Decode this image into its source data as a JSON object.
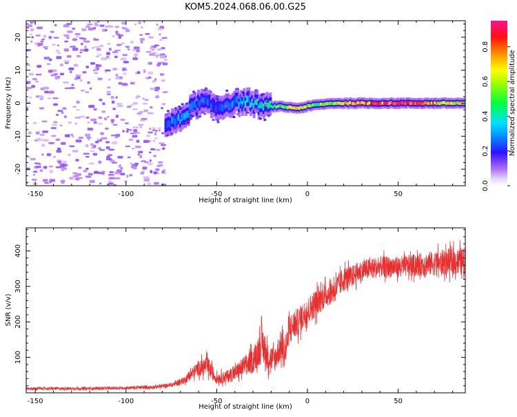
{
  "title": "KOM5.2024.068.06.00.G25",
  "chart_data": [
    {
      "type": "heatmap",
      "xlabel": "Height of straight line (km)",
      "ylabel": "Frequency (Hz)",
      "xlim": [
        -155,
        87
      ],
      "ylim": [
        -25,
        25
      ],
      "xticks": [
        -150,
        -100,
        -50,
        0,
        50
      ],
      "yticks": [
        -20,
        -10,
        0,
        10,
        20
      ],
      "colorbar": {
        "label": "Normalized spectral amplitude",
        "ticks": [
          0.0,
          0.2,
          0.4,
          0.6,
          0.8
        ],
        "range": [
          0,
          0.95
        ]
      },
      "features": {
        "noise_region_x": [
          -155,
          -78
        ],
        "signal_track": [
          {
            "x": -78,
            "freq": -6.5,
            "amp": 0.25
          },
          {
            "x": -70,
            "freq": -5.0,
            "amp": 0.35
          },
          {
            "x": -63,
            "freq": -1.0,
            "amp": 0.3
          },
          {
            "x": -57,
            "freq": 0.5,
            "amp": 0.3
          },
          {
            "x": -50,
            "freq": -1.5,
            "amp": 0.25
          },
          {
            "x": -42,
            "freq": 0.0,
            "amp": 0.3
          },
          {
            "x": -33,
            "freq": 0.5,
            "amp": 0.4
          },
          {
            "x": -24,
            "freq": -1.0,
            "amp": 0.45
          },
          {
            "x": -15,
            "freq": -1.0,
            "amp": 0.6
          },
          {
            "x": -5,
            "freq": -1.5,
            "amp": 0.7
          },
          {
            "x": 5,
            "freq": -0.5,
            "amp": 0.6
          },
          {
            "x": 15,
            "freq": 0.0,
            "amp": 0.6
          },
          {
            "x": 25,
            "freq": 0.0,
            "amp": 0.9
          },
          {
            "x": 45,
            "freq": 0.0,
            "amp": 0.95
          },
          {
            "x": 65,
            "freq": 0.0,
            "amp": 0.85
          },
          {
            "x": 87,
            "freq": 0.0,
            "amp": 0.7
          }
        ]
      }
    },
    {
      "type": "line",
      "xlabel": "Height of straight line (km)",
      "ylabel": "SNR (v/v)",
      "xlim": [
        -155,
        87
      ],
      "ylim": [
        0,
        465
      ],
      "xticks": [
        -150,
        -100,
        -50,
        0,
        50
      ],
      "yticks": [
        100,
        200,
        300,
        400
      ],
      "color": "#e83030",
      "series": [
        {
          "x": [
            -155,
            -140,
            -120,
            -100,
            -85,
            -75,
            -68,
            -60,
            -55,
            -50,
            -45,
            -40,
            -35,
            -30,
            -25,
            -22,
            -18,
            -15,
            -12,
            -10,
            -5,
            0,
            5,
            10,
            15,
            20,
            25,
            30,
            40,
            50,
            60,
            70,
            80,
            87
          ],
          "values": [
            12,
            12,
            12,
            14,
            16,
            22,
            35,
            70,
            75,
            40,
            45,
            55,
            75,
            90,
            140,
            100,
            95,
            130,
            115,
            180,
            200,
            230,
            255,
            275,
            290,
            320,
            330,
            345,
            355,
            355,
            360,
            365,
            370,
            370
          ],
          "noise": [
            4,
            4,
            4,
            4,
            5,
            6,
            10,
            22,
            28,
            15,
            18,
            22,
            28,
            35,
            55,
            40,
            35,
            45,
            45,
            40,
            40,
            40,
            40,
            35,
            35,
            35,
            30,
            30,
            30,
            30,
            32,
            35,
            38,
            40
          ]
        }
      ]
    }
  ]
}
